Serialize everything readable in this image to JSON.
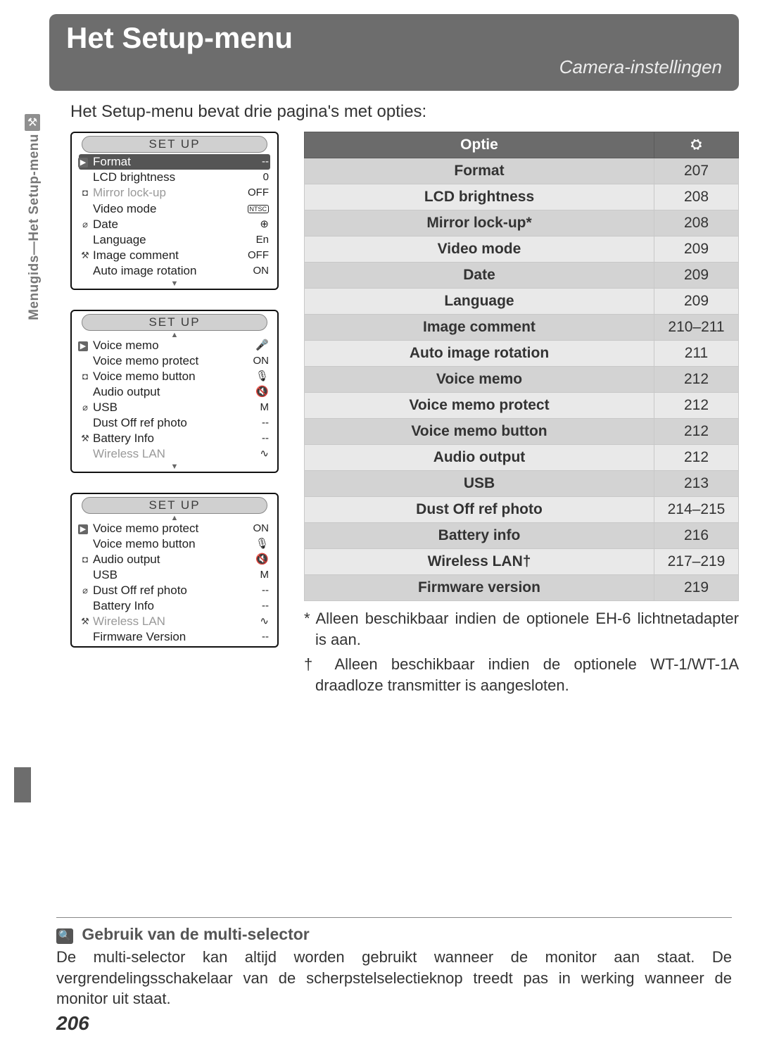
{
  "header": {
    "title": "Het Setup-menu",
    "subtitle": "Camera-instellingen"
  },
  "intro": "Het Setup-menu bevat drie pagina's met opties:",
  "sidebar": {
    "label": "Menugids—Het Setup-menu",
    "icon": "⚒"
  },
  "screens": [
    {
      "title": "SET UP",
      "arrow_up": false,
      "arrow_down": true,
      "rows": [
        {
          "icon": "▶",
          "label": "Format",
          "value": "--",
          "play": true
        },
        {
          "icon": "",
          "label": "LCD brightness",
          "value": "0"
        },
        {
          "icon": "◘",
          "label": "Mirror lock-up",
          "value": "OFF",
          "dim": true
        },
        {
          "icon": "",
          "label": "Video mode",
          "value": "NTSC",
          "ntsc": true
        },
        {
          "icon": "⌀",
          "label": "Date",
          "value": "⊕"
        },
        {
          "icon": "",
          "label": "Language",
          "value": "En"
        },
        {
          "icon": "⚒",
          "label": "Image comment",
          "value": "OFF"
        },
        {
          "icon": "",
          "label": "Auto image rotation",
          "value": "ON"
        }
      ]
    },
    {
      "title": "SET UP",
      "arrow_up": true,
      "arrow_down": true,
      "rows": [
        {
          "icon": "▶",
          "label": "Voice memo",
          "value": "🎤",
          "play": true
        },
        {
          "icon": "",
          "label": "Voice memo protect",
          "value": "ON"
        },
        {
          "icon": "◘",
          "label": "Voice memo button",
          "value": "🎙"
        },
        {
          "icon": "",
          "label": "Audio output",
          "value": "🔇"
        },
        {
          "icon": "⌀",
          "label": "USB",
          "value": "M"
        },
        {
          "icon": "",
          "label": "Dust Off ref photo",
          "value": "--"
        },
        {
          "icon": "⚒",
          "label": "Battery Info",
          "value": "--"
        },
        {
          "icon": "",
          "label": "Wireless LAN",
          "value": "∿",
          "dim": true
        }
      ]
    },
    {
      "title": "SET UP",
      "arrow_up": true,
      "arrow_down": false,
      "rows": [
        {
          "icon": "▶",
          "label": "Voice memo protect",
          "value": "ON",
          "play": true
        },
        {
          "icon": "",
          "label": "Voice memo button",
          "value": "🎙"
        },
        {
          "icon": "◘",
          "label": "Audio output",
          "value": "🔇"
        },
        {
          "icon": "",
          "label": "USB",
          "value": "M"
        },
        {
          "icon": "⌀",
          "label": "Dust Off ref photo",
          "value": "--"
        },
        {
          "icon": "",
          "label": "Battery Info",
          "value": "--"
        },
        {
          "icon": "⚒",
          "label": "Wireless LAN",
          "value": "∿",
          "dim": true
        },
        {
          "icon": "",
          "label": "Firmware Version",
          "value": "--"
        }
      ]
    }
  ],
  "table": {
    "header": {
      "optie": "Optie",
      "page_icon": "⛭"
    },
    "rows": [
      {
        "option": "Format",
        "page": "207"
      },
      {
        "option": "LCD brightness",
        "page": "208"
      },
      {
        "option": "Mirror lock-up*",
        "page": "208"
      },
      {
        "option": "Video mode",
        "page": "209"
      },
      {
        "option": "Date",
        "page": "209"
      },
      {
        "option": "Language",
        "page": "209"
      },
      {
        "option": "Image comment",
        "page": "210–211"
      },
      {
        "option": "Auto image rotation",
        "page": "211"
      },
      {
        "option": "Voice memo",
        "page": "212"
      },
      {
        "option": "Voice memo protect",
        "page": "212"
      },
      {
        "option": "Voice memo button",
        "page": "212"
      },
      {
        "option": "Audio output",
        "page": "212"
      },
      {
        "option": "USB",
        "page": "213"
      },
      {
        "option": "Dust Off ref photo",
        "page": "214–215"
      },
      {
        "option": "Battery info",
        "page": "216"
      },
      {
        "option": "Wireless LAN†",
        "page": "217–219"
      },
      {
        "option": "Firmware version",
        "page": "219"
      }
    ]
  },
  "footnotes": {
    "a": "* Alleen beschikbaar indien de optionele EH-6 lichtnetadapter is aan.",
    "b": "† Alleen beschikbaar indien de optionele WT-1/WT-1A draadloze transmitter is aangesloten."
  },
  "bottom": {
    "heading": "Gebruik van de multi-selector",
    "text": "De multi-selector kan altijd worden gebruikt wanneer de monitor aan staat. De vergrendelingsschakelaar van de scherpstelselectieknop treedt pas in werking wanneer de monitor uit staat."
  },
  "page_number": "206"
}
